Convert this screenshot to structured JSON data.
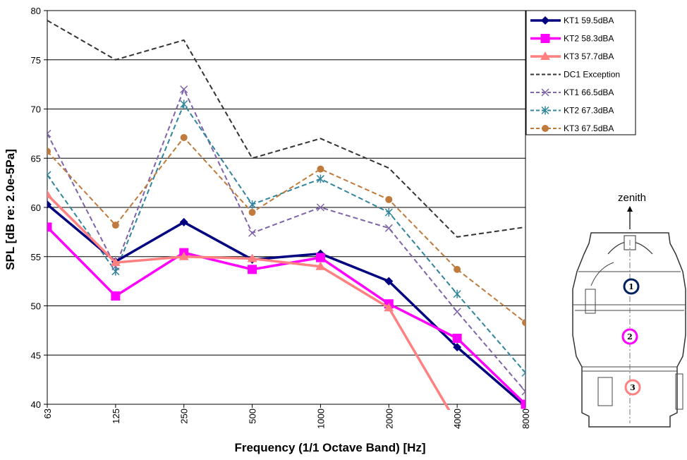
{
  "chart_data": {
    "type": "line",
    "title": "",
    "xlabel": "Frequency (1/1 Octave Band) [Hz]",
    "ylabel": "SPL [dB re: 2.0e-5Pa]",
    "categories": [
      "63",
      "125",
      "250",
      "500",
      "1000",
      "2000",
      "4000",
      "8000"
    ],
    "ylim": [
      40,
      80
    ],
    "yticks": [
      40,
      45,
      50,
      55,
      60,
      65,
      70,
      75,
      80
    ],
    "grid": "horizontal",
    "legend_position": "top-right",
    "series": [
      {
        "name": "KT1 59.5dBA",
        "color": "#000080",
        "style": "solid",
        "marker": "diamond",
        "values": [
          60.3,
          54.5,
          58.5,
          54.7,
          55.3,
          52.5,
          45.8,
          39.8
        ]
      },
      {
        "name": "KT2 58.3dBA",
        "color": "#FF00FF",
        "style": "solid",
        "marker": "square",
        "values": [
          58.0,
          51.0,
          55.4,
          53.7,
          54.9,
          50.2,
          46.7,
          40.0
        ]
      },
      {
        "name": "KT3 57.7dBA",
        "color": "#FF8080",
        "style": "solid",
        "marker": "triangle",
        "values": [
          61.3,
          54.4,
          55.0,
          54.8,
          54.0,
          49.8,
          38.0,
          null
        ]
      },
      {
        "name": "DC1 Exception",
        "color": "#333333",
        "style": "dash",
        "marker": "none",
        "values": [
          79.0,
          75.0,
          77.0,
          65.0,
          67.0,
          64.0,
          57.0,
          58.0
        ]
      },
      {
        "name": "KT1 66.5dBA",
        "color": "#7F64A8",
        "style": "dash",
        "marker": "x",
        "values": [
          67.5,
          54.0,
          72.0,
          57.4,
          60.0,
          57.9,
          49.4,
          41.3
        ]
      },
      {
        "name": "KT2 67.3dBA",
        "color": "#31859C",
        "style": "dash",
        "marker": "star",
        "values": [
          63.3,
          53.5,
          70.5,
          60.3,
          62.9,
          59.5,
          51.2,
          43.2
        ]
      },
      {
        "name": "KT3 67.5dBA",
        "color": "#C07A3C",
        "style": "dash",
        "marker": "circle",
        "values": [
          65.7,
          58.2,
          67.1,
          59.5,
          63.9,
          60.8,
          53.7,
          48.3
        ]
      }
    ]
  },
  "diagram": {
    "label": "zenith",
    "positions": [
      "1",
      "2",
      "3"
    ],
    "position_colors": [
      "#002060",
      "#FF00FF",
      "#FF8080"
    ]
  }
}
